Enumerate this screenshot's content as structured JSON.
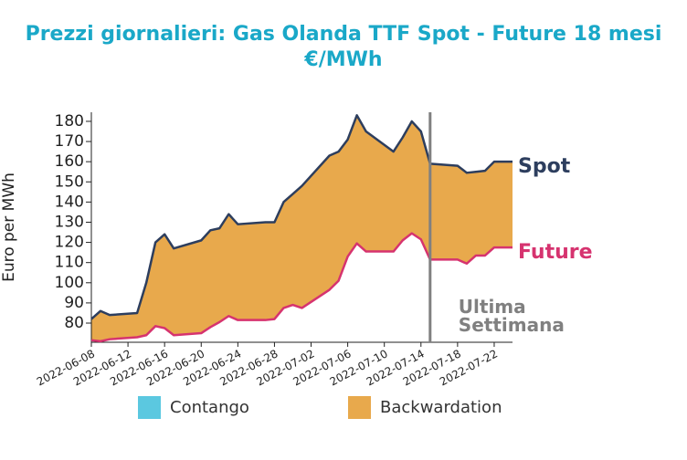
{
  "chart_data": {
    "type": "line",
    "title": "Prezzi giornalieri: Gas Olanda TTF Spot - Future 18 mesi",
    "subtitle": "€/MWh",
    "y_label": "Euro per MWh",
    "annotation": "Ultima Settimana",
    "marker_date": "2022-07-15",
    "marker_color": "#808080",
    "x": [
      "2022-06-08",
      "2022-06-09",
      "2022-06-10",
      "2022-06-13",
      "2022-06-14",
      "2022-06-15",
      "2022-06-16",
      "2022-06-17",
      "2022-06-20",
      "2022-06-21",
      "2022-06-22",
      "2022-06-23",
      "2022-06-24",
      "2022-06-27",
      "2022-06-28",
      "2022-06-29",
      "2022-06-30",
      "2022-07-01",
      "2022-07-04",
      "2022-07-05",
      "2022-07-06",
      "2022-07-07",
      "2022-07-08",
      "2022-07-11",
      "2022-07-12",
      "2022-07-13",
      "2022-07-14",
      "2022-07-15",
      "2022-07-18",
      "2022-07-19",
      "2022-07-20",
      "2022-07-21",
      "2022-07-22",
      "2022-07-24"
    ],
    "series": [
      {
        "name": "Spot",
        "color": "#2d3e5e",
        "values": [
          82,
          86,
          84,
          85,
          100,
          120,
          124,
          117,
          121,
          126,
          127,
          134,
          129,
          130,
          130,
          140,
          144,
          148,
          163,
          165,
          171,
          183,
          175,
          165,
          172,
          180,
          175,
          159,
          158,
          154.5,
          155,
          155.5,
          160,
          160
        ]
      },
      {
        "name": "Future",
        "color": "#d6336f",
        "values": [
          71.5,
          71,
          72,
          73,
          74,
          78.5,
          77.5,
          74,
          75,
          78,
          80.5,
          83.5,
          81.5,
          81.5,
          82,
          87.5,
          89,
          87.5,
          96.5,
          101,
          113,
          119.5,
          115.5,
          115.5,
          121,
          124.5,
          121.5,
          111.5,
          111.5,
          109.5,
          113.5,
          113.5,
          117.5,
          117.5
        ]
      }
    ],
    "fill_legend": [
      {
        "name": "Contango",
        "color": "#5bc8e0"
      },
      {
        "name": "Backwardation",
        "color": "#e8a94c"
      }
    ],
    "xlim": [
      "2022-06-08",
      "2022-07-24"
    ],
    "xticks": [
      "2022-06-08",
      "2022-06-12",
      "2022-06-16",
      "2022-06-20",
      "2022-06-24",
      "2022-06-28",
      "2022-07-02",
      "2022-07-06",
      "2022-07-10",
      "2022-07-14",
      "2022-07-18",
      "2022-07-22"
    ],
    "ylim": [
      70.5,
      184.5
    ],
    "yticks": [
      80,
      90,
      100,
      110,
      120,
      130,
      140,
      150,
      160,
      170,
      180
    ]
  }
}
